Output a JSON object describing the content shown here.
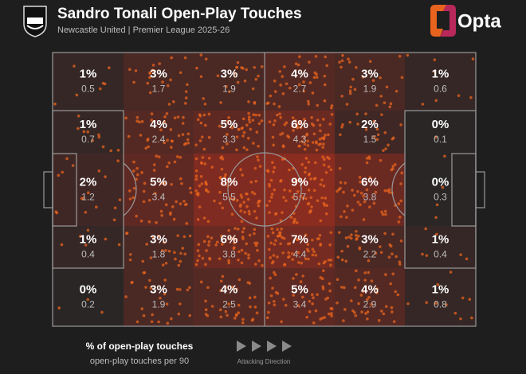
{
  "header": {
    "title": "Sandro Tonali Open-Play Touches",
    "subtitle": "Newcastle United | Premier League 2025-26",
    "brand": "Opta"
  },
  "chart_data": {
    "type": "heatmap",
    "rows": [
      {
        "values": [
          1,
          3,
          3,
          4,
          3,
          1
        ],
        "value_labels": [
          "1%",
          "3%",
          "3%",
          "4%",
          "3%",
          "1%"
        ],
        "per90": [
          0.5,
          1.7,
          1.9,
          2.7,
          1.9,
          0.6
        ]
      },
      {
        "values": [
          1,
          4,
          5,
          6,
          2,
          0
        ],
        "value_labels": [
          "1%",
          "4%",
          "5%",
          "6%",
          "2%",
          "0%"
        ],
        "per90": [
          0.7,
          2.4,
          3.3,
          4.3,
          1.5,
          0.1
        ]
      },
      {
        "values": [
          2,
          5,
          8,
          9,
          6,
          0
        ],
        "value_labels": [
          "2%",
          "5%",
          "8%",
          "9%",
          "6%",
          "0%"
        ],
        "per90": [
          1.2,
          3.4,
          5.5,
          5.7,
          3.8,
          0.3
        ]
      },
      {
        "values": [
          1,
          3,
          6,
          7,
          3,
          1
        ],
        "value_labels": [
          "1%",
          "3%",
          "6%",
          "7%",
          "3%",
          "1%"
        ],
        "per90": [
          0.4,
          1.8,
          3.8,
          4.4,
          2.2,
          0.4
        ]
      },
      {
        "values": [
          0,
          3,
          4,
          5,
          4,
          1
        ],
        "value_labels": [
          "0%",
          "3%",
          "4%",
          "5%",
          "4%",
          "1%"
        ],
        "per90": [
          0.2,
          1.9,
          2.5,
          3.4,
          2.9,
          0.8
        ]
      }
    ],
    "color_scale": [
      "#2a2626",
      "#8a2c20"
    ],
    "dot_color": "#e8641e",
    "legend": {
      "primary": "% of open-play touches",
      "secondary": "open-play touches per 90"
    },
    "direction_label": "Attacking Direction"
  }
}
